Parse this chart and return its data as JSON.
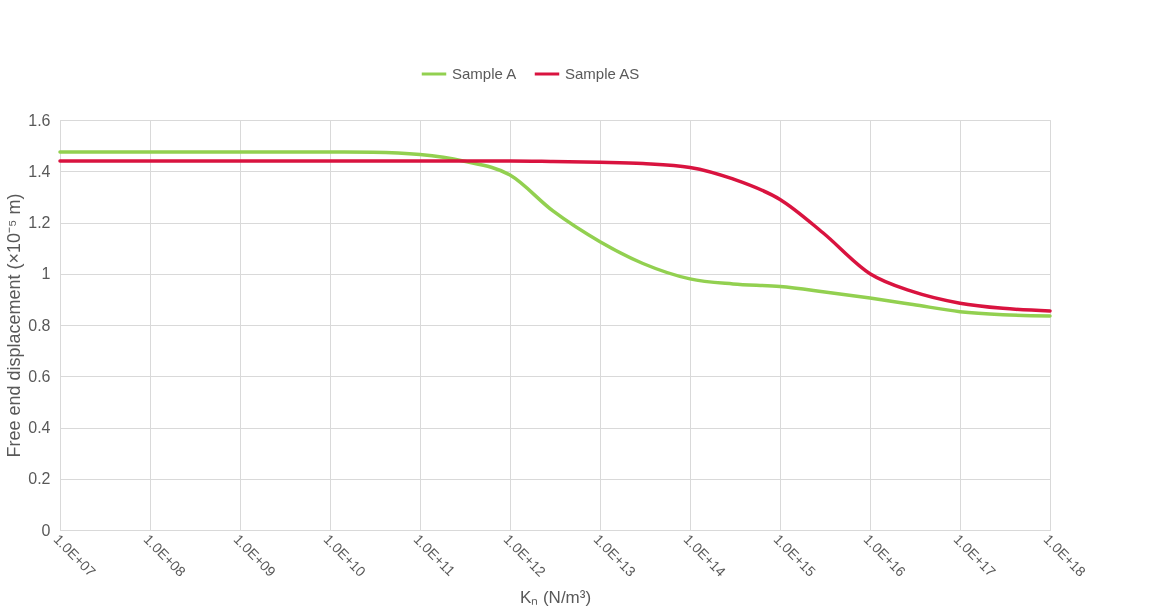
{
  "chart_data": {
    "type": "line",
    "xlabel": "Kₙ (N/m³)",
    "ylabel": "Free end displacement (×10⁻⁵ m)",
    "x": [
      10000000.0,
      100000000.0,
      1000000000.0,
      10000000000.0,
      30000000000.0,
      100000000000.0,
      300000000000.0,
      1000000000000.0,
      3000000000000.0,
      10000000000000.0,
      30000000000000.0,
      100000000000000.0,
      300000000000000.0,
      1000000000000000.0,
      3000000000000000.0,
      1e+16,
      3e+16,
      1e+17,
      3e+17,
      1e+18
    ],
    "series": [
      {
        "name": "Sample A",
        "color": "#92d050",
        "values": [
          1.475,
          1.475,
          1.475,
          1.475,
          1.474,
          1.465,
          1.44,
          1.385,
          1.245,
          1.125,
          1.04,
          0.98,
          0.96,
          0.95,
          0.93,
          0.905,
          0.88,
          0.852,
          0.84,
          0.835
        ]
      },
      {
        "name": "Sample AS",
        "color": "#d9133f",
        "values": [
          1.44,
          1.44,
          1.44,
          1.44,
          1.44,
          1.44,
          1.44,
          1.44,
          1.438,
          1.435,
          1.43,
          1.415,
          1.37,
          1.29,
          1.16,
          1.0,
          0.93,
          0.885,
          0.865,
          0.855
        ]
      }
    ],
    "log": "x",
    "xlim": [
      10000000.0,
      1e+18
    ],
    "xticks": [
      {
        "value": 10000000.0,
        "label": "1.0E+07"
      },
      {
        "value": 100000000.0,
        "label": "1.0E+08"
      },
      {
        "value": 1000000000.0,
        "label": "1.0E+09"
      },
      {
        "value": 10000000000.0,
        "label": "1.0E+10"
      },
      {
        "value": 100000000000.0,
        "label": "1.0E+11"
      },
      {
        "value": 1000000000000.0,
        "label": "1.0E+12"
      },
      {
        "value": 10000000000000.0,
        "label": "1.0E+13"
      },
      {
        "value": 100000000000000.0,
        "label": "1.0E+14"
      },
      {
        "value": 1000000000000000.0,
        "label": "1.0E+15"
      },
      {
        "value": 1e+16,
        "label": "1.0E+16"
      },
      {
        "value": 1e+17,
        "label": "1.0E+17"
      },
      {
        "value": 1e+18,
        "label": "1.0E+18"
      }
    ],
    "ylim": [
      0,
      1.6
    ],
    "yticks": [
      0,
      0.2,
      0.4,
      0.6,
      0.8,
      1,
      1.2,
      1.4,
      1.6
    ],
    "grid": true,
    "legend": "top",
    "marker": "none",
    "line_style": "solid"
  }
}
